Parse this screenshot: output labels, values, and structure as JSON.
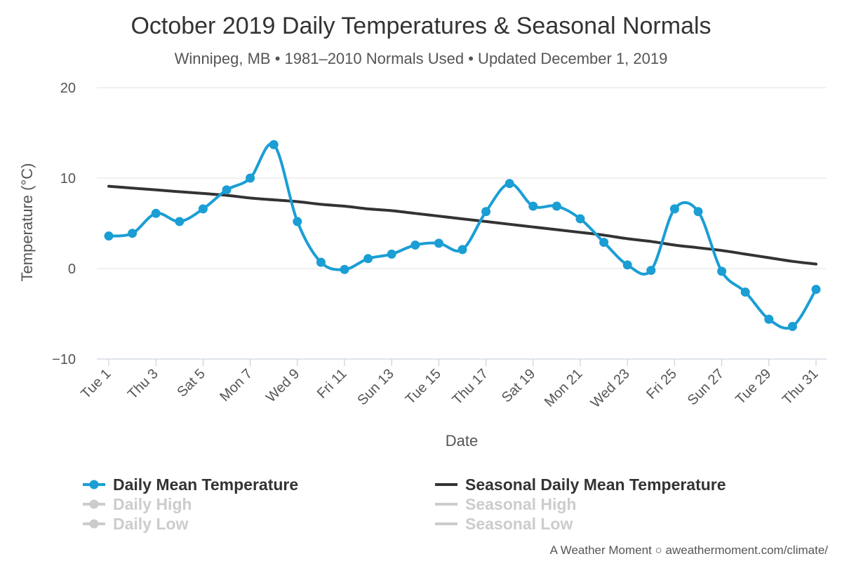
{
  "colors": {
    "mean": "#1A9ED4",
    "seasonal_mean": "#333333",
    "disabled": "#cccccc",
    "grid": "#e0e0e0",
    "text": "#333333"
  },
  "chart_data": {
    "type": "line",
    "title": "October 2019 Daily Temperatures & Seasonal Normals",
    "subtitle": "Winnipeg, MB • 1981–2010 Normals Used • Updated December 1, 2019",
    "xlabel": "Date",
    "ylabel": "Temperature (°C)",
    "ylim": [
      -10,
      20
    ],
    "yticks": [
      "−10",
      "0",
      "10",
      "20"
    ],
    "ytick_values": [
      -10,
      0,
      10,
      20
    ],
    "x": [
      1,
      2,
      3,
      4,
      5,
      6,
      7,
      8,
      9,
      10,
      11,
      12,
      13,
      14,
      15,
      16,
      17,
      18,
      19,
      20,
      21,
      22,
      23,
      24,
      25,
      26,
      27,
      28,
      29,
      30,
      31
    ],
    "xtick_days": [
      1,
      3,
      5,
      7,
      9,
      11,
      13,
      15,
      17,
      19,
      21,
      23,
      25,
      27,
      29,
      31
    ],
    "xtick_labels": [
      "Tue 1",
      "Thu 3",
      "Sat 5",
      "Mon 7",
      "Wed 9",
      "Fri 11",
      "Sun 13",
      "Tue 15",
      "Thu 17",
      "Sat 19",
      "Mon 21",
      "Wed 23",
      "Fri 25",
      "Sun 27",
      "Tue 29",
      "Thu 31"
    ],
    "grid": true,
    "legend_position": "bottom",
    "series": [
      {
        "name": "Daily Mean Temperature",
        "values": [
          3.6,
          3.9,
          6.1,
          5.2,
          6.6,
          8.7,
          10.0,
          13.7,
          5.2,
          0.7,
          -0.1,
          1.1,
          1.6,
          2.6,
          2.8,
          2.1,
          6.3,
          9.4,
          6.9,
          6.9,
          5.5,
          2.9,
          0.4,
          -0.2,
          6.6,
          6.3,
          -0.3,
          -2.6,
          -5.6,
          -6.4,
          -2.3
        ],
        "visible": true,
        "marker": "circle"
      },
      {
        "name": "Seasonal Daily Mean Temperature",
        "values": [
          9.1,
          8.9,
          8.7,
          8.5,
          8.3,
          8.1,
          7.8,
          7.6,
          7.4,
          7.1,
          6.9,
          6.6,
          6.4,
          6.1,
          5.8,
          5.5,
          5.2,
          4.9,
          4.6,
          4.3,
          4.0,
          3.7,
          3.3,
          3.0,
          2.6,
          2.3,
          2.0,
          1.6,
          1.2,
          0.8,
          0.5
        ],
        "visible": true
      },
      {
        "name": "Daily High",
        "visible": false
      },
      {
        "name": "Daily Low",
        "visible": false
      },
      {
        "name": "Seasonal High",
        "visible": false
      },
      {
        "name": "Seasonal Low",
        "visible": false
      }
    ]
  },
  "credit": "A Weather Moment ○ aweathermoment.com/climate/"
}
